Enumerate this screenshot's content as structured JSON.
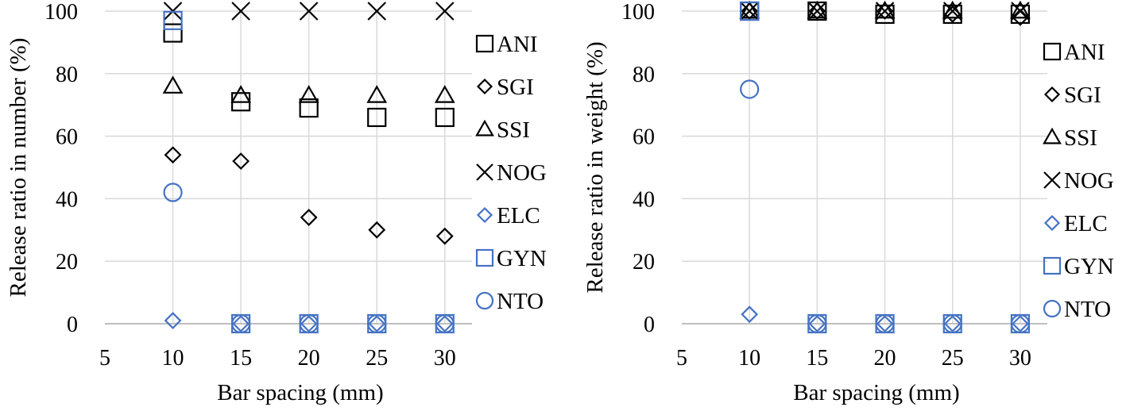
{
  "chart_data": [
    {
      "type": "scatter",
      "xlabel": "Bar spacing (mm)",
      "ylabel": "Release ratio in number (%)",
      "xlim": [
        5,
        32
      ],
      "ylim": [
        0,
        100
      ],
      "xticks": [
        5,
        10,
        15,
        20,
        25,
        30
      ],
      "yticks": [
        0,
        20,
        40,
        60,
        80,
        100
      ],
      "grid": true,
      "legend_position": "right",
      "series": [
        {
          "name": "ANI",
          "marker": "square",
          "color": "#000000",
          "x": [
            10,
            15,
            20,
            25,
            30
          ],
          "y": [
            93,
            71,
            69,
            66,
            66
          ]
        },
        {
          "name": "SGI",
          "marker": "diamond",
          "color": "#000000",
          "x": [
            10,
            15,
            20,
            25,
            30
          ],
          "y": [
            54,
            52,
            34,
            30,
            28
          ]
        },
        {
          "name": "SSI",
          "marker": "triangle",
          "color": "#000000",
          "x": [
            10,
            15,
            20,
            25,
            30
          ],
          "y": [
            76,
            73,
            73,
            73,
            73
          ]
        },
        {
          "name": "NOG",
          "marker": "x",
          "color": "#000000",
          "x": [
            10,
            15,
            20,
            25,
            30
          ],
          "y": [
            100,
            100,
            100,
            100,
            100
          ]
        },
        {
          "name": "ELC",
          "marker": "diamond",
          "color": "#4472C4",
          "x": [
            10,
            15,
            20,
            25,
            30
          ],
          "y": [
            1,
            0,
            0,
            0,
            0
          ]
        },
        {
          "name": "GYN",
          "marker": "square",
          "color": "#4472C4",
          "x": [
            10,
            15,
            20,
            25,
            30
          ],
          "y": [
            97,
            0,
            0,
            0,
            0
          ]
        },
        {
          "name": "NTO",
          "marker": "circle",
          "color": "#4472C4",
          "x": [
            10,
            15,
            20,
            25,
            30
          ],
          "y": [
            42,
            0,
            0,
            0,
            0
          ]
        }
      ]
    },
    {
      "type": "scatter",
      "xlabel": "Bar spacing (mm)",
      "ylabel": "Release ratio in weight (%)",
      "xlim": [
        5,
        32
      ],
      "ylim": [
        0,
        100
      ],
      "xticks": [
        5,
        10,
        15,
        20,
        25,
        30
      ],
      "yticks": [
        0,
        20,
        40,
        60,
        80,
        100
      ],
      "grid": true,
      "legend_position": "right",
      "series": [
        {
          "name": "ANI",
          "marker": "square",
          "color": "#000000",
          "x": [
            10,
            15,
            20,
            25,
            30
          ],
          "y": [
            100,
            100,
            99,
            99,
            99
          ]
        },
        {
          "name": "SGI",
          "marker": "diamond",
          "color": "#000000",
          "x": [
            10,
            15,
            20,
            25,
            30
          ],
          "y": [
            100,
            100,
            100,
            99,
            98
          ]
        },
        {
          "name": "SSI",
          "marker": "triangle",
          "color": "#000000",
          "x": [
            10,
            15,
            20,
            25,
            30
          ],
          "y": [
            100,
            100,
            100,
            100,
            100
          ]
        },
        {
          "name": "NOG",
          "marker": "x",
          "color": "#000000",
          "x": [
            10,
            15,
            20,
            25,
            30
          ],
          "y": [
            100,
            100,
            100,
            100,
            100
          ]
        },
        {
          "name": "ELC",
          "marker": "diamond",
          "color": "#4472C4",
          "x": [
            10,
            15,
            20,
            25,
            30
          ],
          "y": [
            3,
            0,
            0,
            0,
            0
          ]
        },
        {
          "name": "GYN",
          "marker": "square",
          "color": "#4472C4",
          "x": [
            10,
            15,
            20,
            25,
            30
          ],
          "y": [
            100,
            0,
            0,
            0,
            0
          ]
        },
        {
          "name": "NTO",
          "marker": "circle",
          "color": "#4472C4",
          "x": [
            10,
            15,
            20,
            25,
            30
          ],
          "y": [
            75,
            0,
            0,
            0,
            0
          ]
        }
      ]
    }
  ]
}
